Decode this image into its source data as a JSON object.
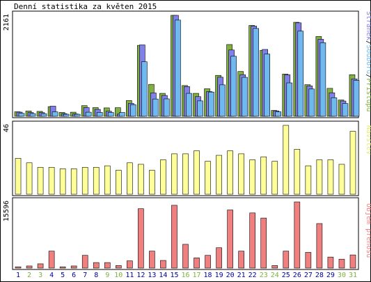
{
  "title": "Denní statistika za květen 2015",
  "chart_data": [
    {
      "type": "bar",
      "panel": "top",
      "categories": [
        "1",
        "2",
        "3",
        "4",
        "5",
        "6",
        "7",
        "8",
        "9",
        "10",
        "11",
        "12",
        "13",
        "14",
        "15",
        "16",
        "17",
        "18",
        "19",
        "20",
        "21",
        "22",
        "23",
        "24",
        "25",
        "26",
        "27",
        "28",
        "29",
        "30",
        "31"
      ],
      "series": [
        {
          "name": "Přístupů",
          "color": "#80b040",
          "values": [
            97,
            113,
            105,
            207,
            83,
            88,
            228,
            186,
            180,
            184,
            337,
            1518,
            683,
            491,
            2161,
            658,
            491,
            589,
            876,
            1536,
            959,
            1945,
            1412,
            126,
            904,
            2012,
            677,
            1708,
            598,
            349,
            890
          ]
        },
        {
          "name": "Stránek",
          "color": "#8080e8",
          "values": [
            89,
            81,
            80,
            217,
            56,
            50,
            186,
            148,
            108,
            47,
            276,
            1528,
            500,
            446,
            2161,
            636,
            421,
            530,
            837,
            1419,
            889,
            1931,
            1431,
            116,
            888,
            2000,
            650,
            1648,
            503,
            327,
            800
          ]
        },
        {
          "name": "Souborů",
          "color": "#70b8f0",
          "values": [
            63,
            57,
            53,
            95,
            44,
            44,
            88,
            84,
            82,
            82,
            248,
            1167,
            370,
            373,
            2059,
            491,
            330,
            519,
            673,
            1285,
            834,
            1880,
            1332,
            96,
            715,
            1823,
            584,
            1575,
            396,
            273,
            768
          ]
        }
      ],
      "ylabel_top": "2161",
      "ylim": [
        0,
        2161
      ]
    },
    {
      "type": "bar",
      "panel": "middle",
      "categories": [
        "1",
        "2",
        "3",
        "4",
        "5",
        "6",
        "7",
        "8",
        "9",
        "10",
        "11",
        "12",
        "13",
        "14",
        "15",
        "16",
        "17",
        "18",
        "19",
        "20",
        "21",
        "22",
        "23",
        "24",
        "25",
        "26",
        "27",
        "28",
        "29",
        "30",
        "31"
      ],
      "series": [
        {
          "name": "Návštěv",
          "color": "#ffff98",
          "values": [
            24,
            21,
            18,
            18,
            17,
            17,
            18,
            18,
            19,
            16,
            21,
            20,
            16,
            23,
            27,
            27,
            29,
            22,
            26,
            29,
            27,
            23,
            25,
            22,
            46,
            30,
            19,
            23,
            23,
            20,
            42
          ]
        }
      ],
      "ylabel_top": "46",
      "ylim": [
        0,
        46
      ]
    },
    {
      "type": "bar",
      "panel": "bottom",
      "categories": [
        "1",
        "2",
        "3",
        "4",
        "5",
        "6",
        "7",
        "8",
        "9",
        "10",
        "11",
        "12",
        "13",
        "14",
        "15",
        "16",
        "17",
        "18",
        "19",
        "20",
        "21",
        "22",
        "23",
        "24",
        "25",
        "26",
        "27",
        "28",
        "29",
        "30",
        "31"
      ],
      "series": [
        {
          "name": "Objem přenosu",
          "color": "#f08080",
          "values": [
            300,
            500,
            1000,
            4000,
            300,
            500,
            3000,
            1300,
            1300,
            600,
            1700,
            14000,
            4000,
            1800,
            14800,
            5600,
            2400,
            3000,
            4800,
            13700,
            4000,
            13000,
            11800,
            600,
            4000,
            15596,
            3700,
            10500,
            2600,
            2100,
            3100
          ]
        }
      ],
      "ylabel_top": "15596",
      "ylim": [
        0,
        15596
      ]
    }
  ],
  "x_labels": [
    "1",
    "2",
    "3",
    "4",
    "5",
    "6",
    "7",
    "8",
    "9",
    "10",
    "11",
    "12",
    "13",
    "14",
    "15",
    "16",
    "17",
    "18",
    "19",
    "20",
    "21",
    "22",
    "23",
    "24",
    "25",
    "26",
    "27",
    "28",
    "29",
    "30",
    "31"
  ],
  "weekend_days": [
    "2",
    "3",
    "9",
    "10",
    "16",
    "17",
    "23",
    "24",
    "30",
    "31"
  ],
  "colors": {
    "weekday_label": "#0000a0",
    "weekend_label": "#80b040",
    "legend_pristupu": "#80b040",
    "legend_stranek": "#8080e8",
    "legend_souboru": "#70b8f0",
    "legend_navstev": "#e8e870",
    "legend_objem": "#f08080",
    "separator": "#000000"
  },
  "legend": {
    "top": [
      "Stránek",
      "Souborů",
      "Přístupů"
    ],
    "middle": "Návštěv",
    "bottom": "Objem přenosu"
  }
}
